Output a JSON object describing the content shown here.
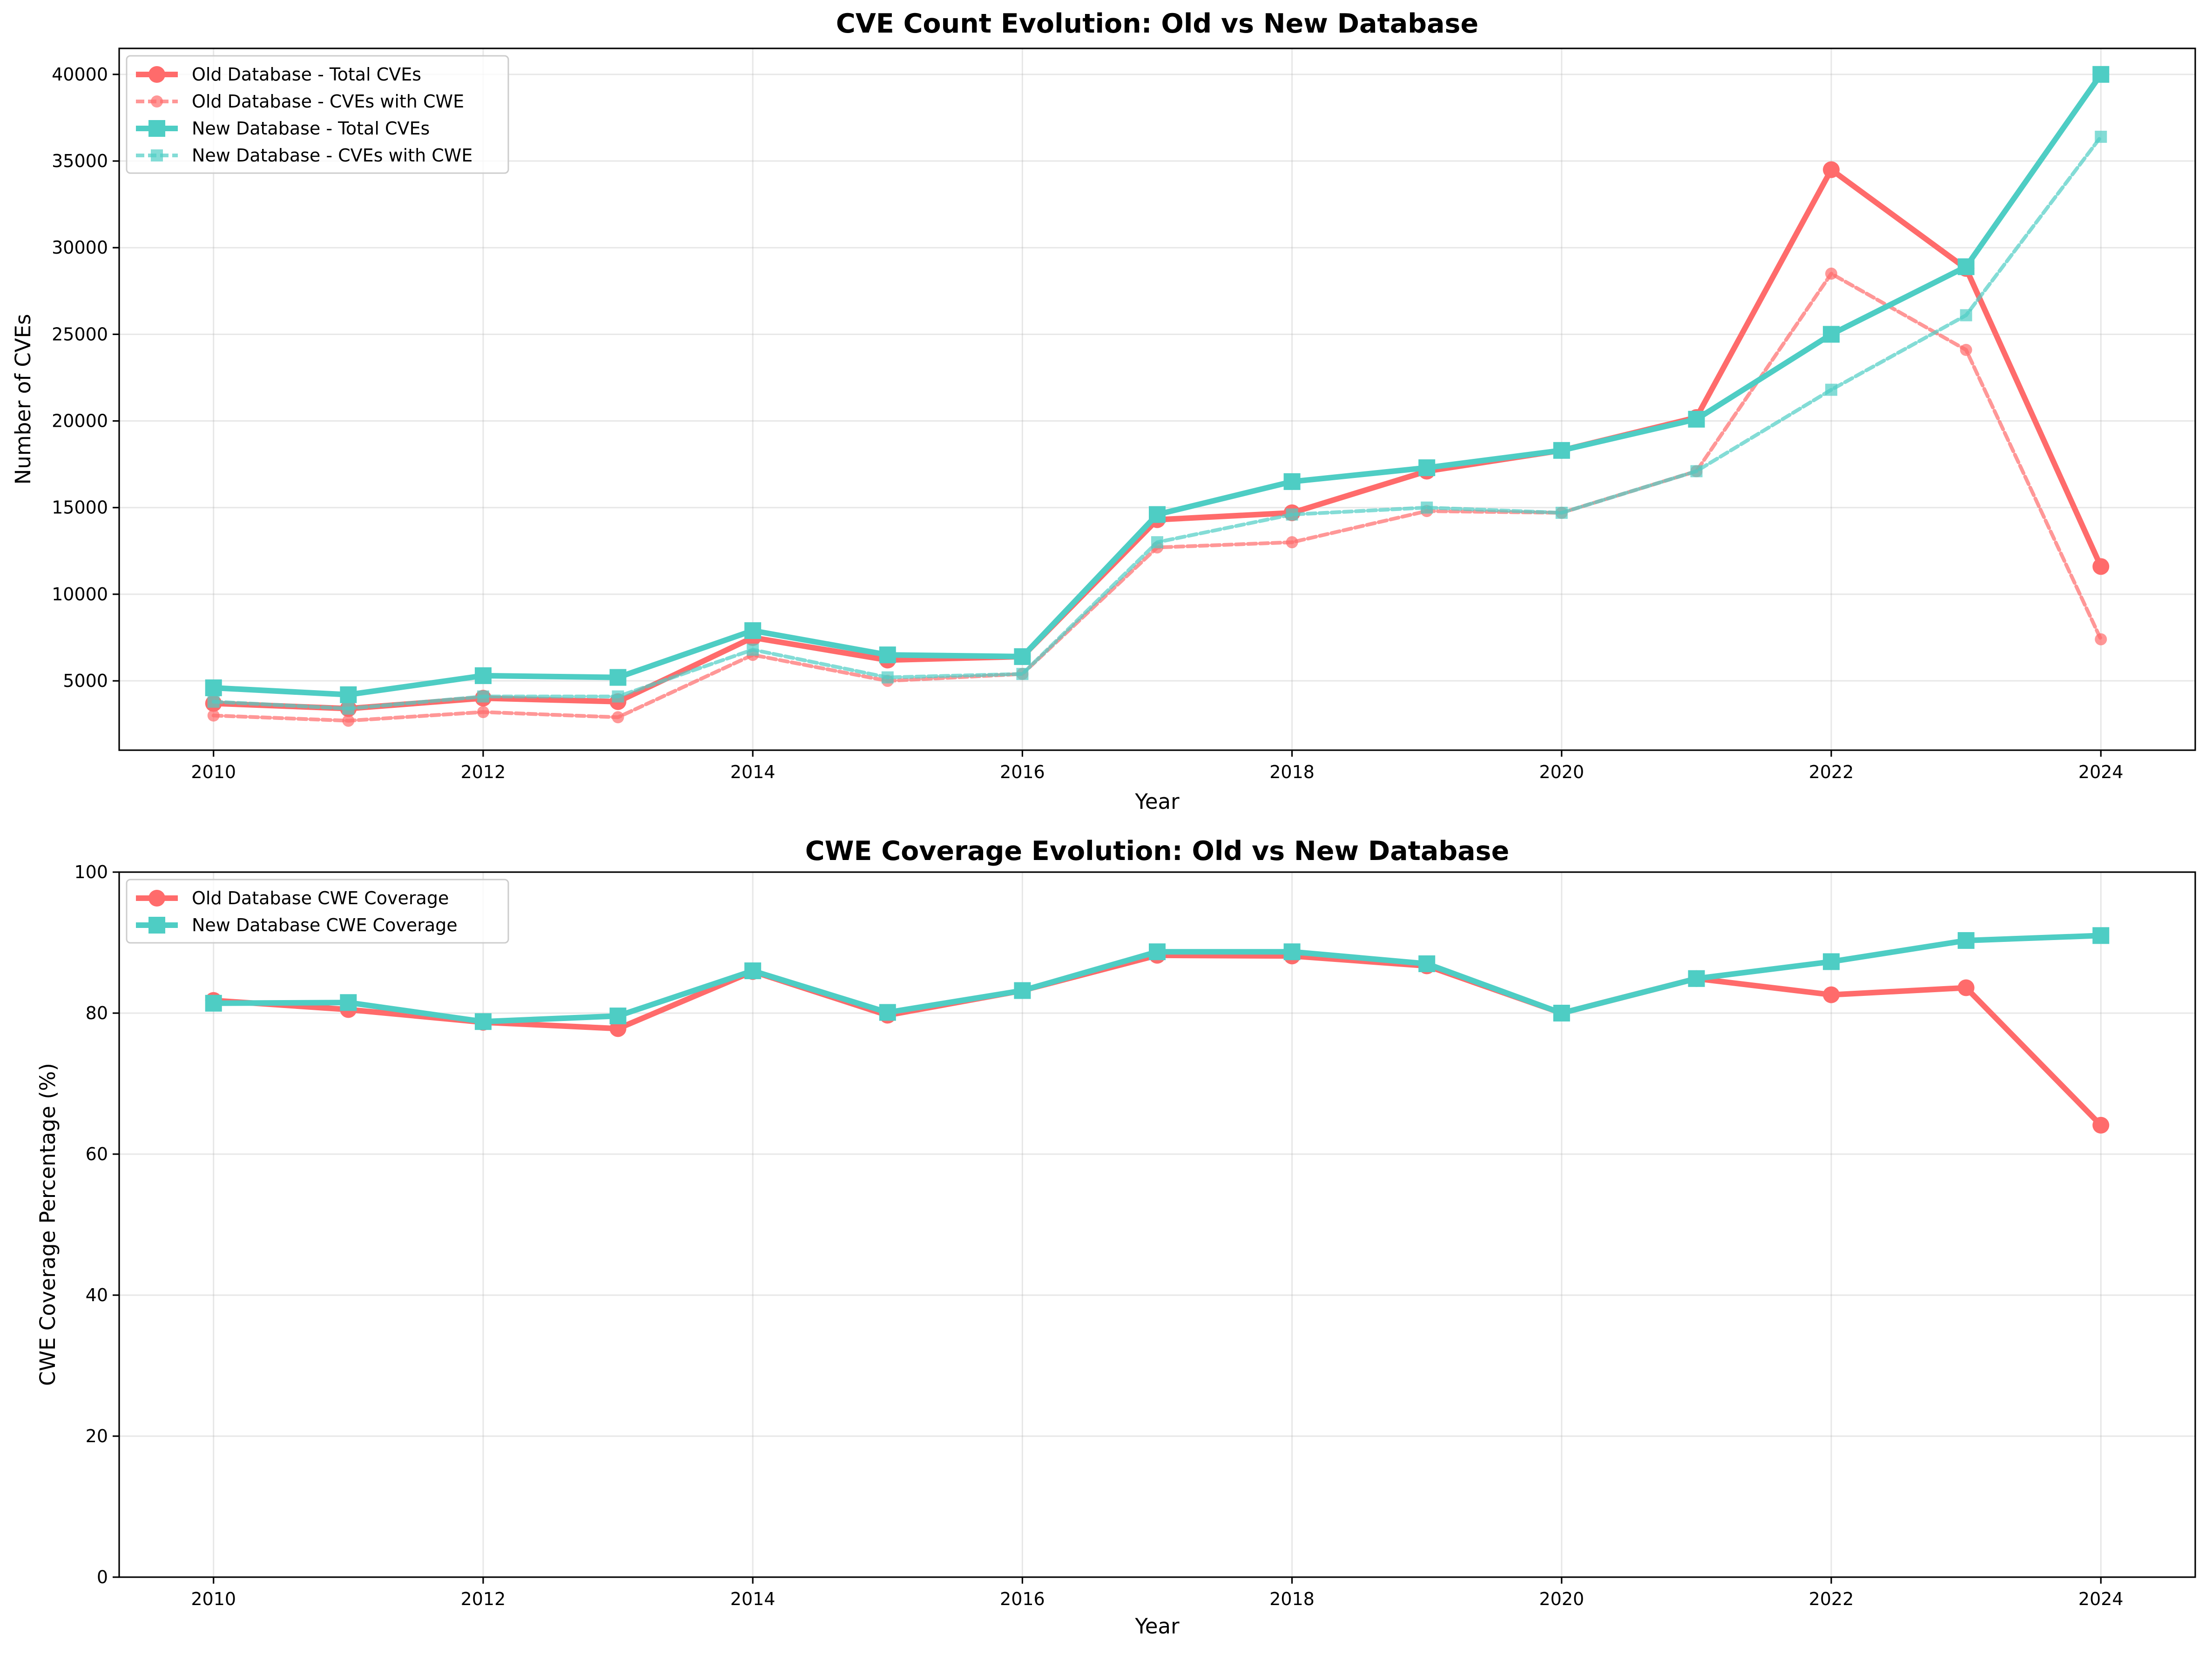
{
  "chart_data": [
    {
      "type": "line",
      "title": "CVE Count Evolution: Old vs New Database",
      "xlabel": "Year",
      "ylabel": "Number of CVEs",
      "xlim": [
        2009.3,
        2024.7
      ],
      "ylim": [
        1000,
        41500
      ],
      "x": [
        2010,
        2011,
        2012,
        2013,
        2014,
        2015,
        2016,
        2017,
        2018,
        2019,
        2020,
        2021,
        2022,
        2023,
        2024
      ],
      "xticks": [
        "2010",
        "2012",
        "2014",
        "2016",
        "2018",
        "2020",
        "2022",
        "2024"
      ],
      "yticks": [
        "5000",
        "10000",
        "15000",
        "20000",
        "25000",
        "30000",
        "35000",
        "40000"
      ],
      "grid": true,
      "legend_position": "upper-left",
      "series": [
        {
          "name": "Old Database - Total CVEs",
          "color": "#ff6b6b",
          "style": "solid",
          "marker": "circle",
          "values": [
            3700,
            3400,
            4000,
            3800,
            7500,
            6200,
            6400,
            14300,
            14700,
            17100,
            18300,
            20200,
            34500,
            28800,
            11600
          ]
        },
        {
          "name": "Old Database - CVEs with CWE",
          "color": "#ff6b6b",
          "style": "dashed",
          "marker": "circle",
          "values": [
            3000,
            2700,
            3200,
            2900,
            6500,
            5000,
            5400,
            12700,
            13000,
            14800,
            14700,
            17100,
            28500,
            24100,
            7400
          ]
        },
        {
          "name": "New Database - Total CVEs",
          "color": "#4ecdc4",
          "style": "solid",
          "marker": "square",
          "values": [
            4600,
            4200,
            5300,
            5200,
            7900,
            6500,
            6400,
            14600,
            16500,
            17300,
            18300,
            20100,
            25000,
            28900,
            40000
          ]
        },
        {
          "name": "New Database - CVEs with CWE",
          "color": "#4ecdc4",
          "style": "dashed",
          "marker": "square",
          "values": [
            3800,
            3400,
            4100,
            4100,
            6800,
            5200,
            5400,
            13000,
            14600,
            15000,
            14700,
            17100,
            21800,
            26100,
            36400
          ]
        }
      ]
    },
    {
      "type": "line",
      "title": "CWE Coverage Evolution: Old vs New Database",
      "xlabel": "Year",
      "ylabel": "CWE Coverage Percentage (%)",
      "xlim": [
        2009.3,
        2024.7
      ],
      "ylim": [
        0,
        100
      ],
      "x": [
        2010,
        2011,
        2012,
        2013,
        2014,
        2015,
        2016,
        2017,
        2018,
        2019,
        2020,
        2021,
        2022,
        2023,
        2024
      ],
      "xticks": [
        "2010",
        "2012",
        "2014",
        "2016",
        "2018",
        "2020",
        "2022",
        "2024"
      ],
      "yticks": [
        "0",
        "20",
        "40",
        "60",
        "80",
        "100"
      ],
      "grid": true,
      "legend_position": "upper-left",
      "series": [
        {
          "name": "Old Database CWE Coverage",
          "color": "#ff6b6b",
          "style": "solid",
          "marker": "circle",
          "values": [
            81.8,
            80.5,
            78.7,
            77.8,
            85.9,
            79.7,
            83.2,
            88.2,
            88.1,
            86.7,
            80.0,
            84.9,
            82.6,
            83.6,
            64.1
          ]
        },
        {
          "name": "New Database CWE Coverage",
          "color": "#4ecdc4",
          "style": "solid",
          "marker": "square",
          "values": [
            81.4,
            81.5,
            78.8,
            79.6,
            86.0,
            80.1,
            83.2,
            88.7,
            88.7,
            87.0,
            80.0,
            84.9,
            87.3,
            90.3,
            91.0
          ]
        }
      ]
    }
  ]
}
